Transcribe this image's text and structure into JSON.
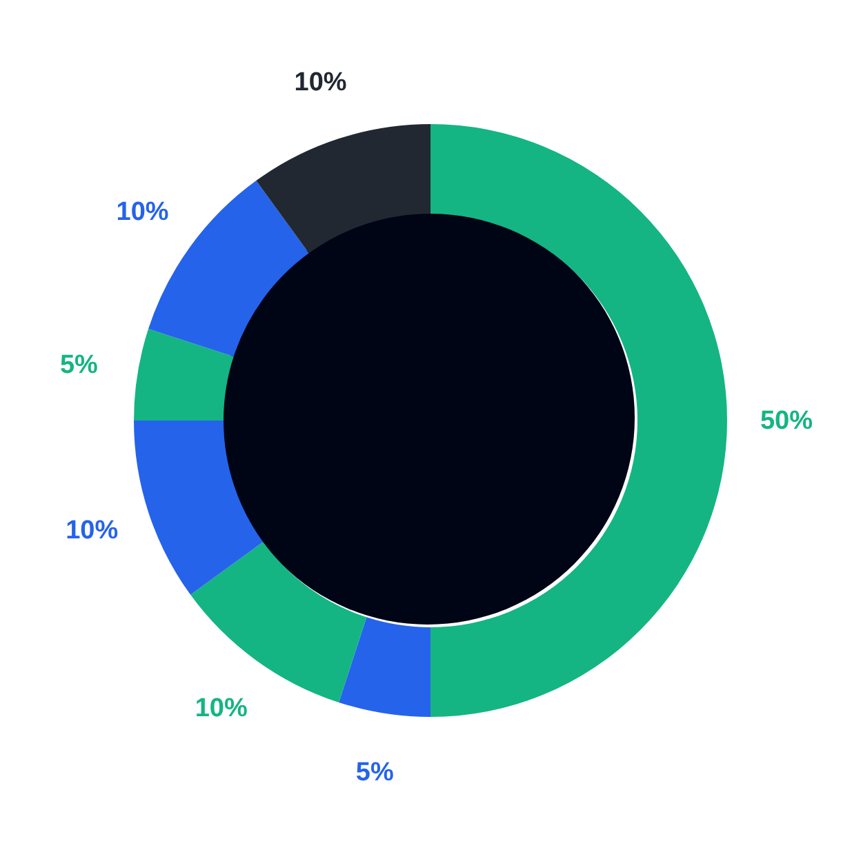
{
  "chart_data": {
    "type": "donut",
    "categories": [
      null,
      null,
      null,
      null,
      null,
      null,
      null
    ],
    "values": [
      50,
      5,
      10,
      10,
      5,
      10,
      10
    ],
    "colors": [
      "#14b582",
      "#2563eb",
      "#14b582",
      "#2563eb",
      "#14b582",
      "#2563eb",
      "#222831"
    ],
    "value_labels": [
      "50%",
      "5%",
      "10%",
      "10%",
      "5%",
      "10%",
      "10%"
    ]
  }
}
